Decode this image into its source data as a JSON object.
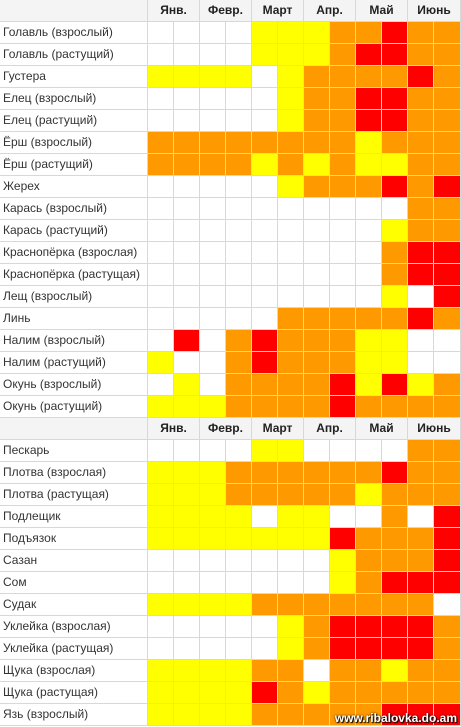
{
  "tables": [
    {
      "header": {
        "months": [
          "Янв.",
          "Февр.",
          "Март",
          "Апр.",
          "Май",
          "Июнь"
        ]
      },
      "rows": [
        {
          "name": "Голавль (взрослый)",
          "cells": [
            "#ffffff",
            "#ffffff",
            "#ffffff",
            "#ffffff",
            "#ffff00",
            "#ffff00",
            "#ffff00",
            "#ff9900",
            "#ff9900",
            "#ff0000",
            "#ff9900",
            "#ff9900"
          ]
        },
        {
          "name": "Голавль (растущий)",
          "cells": [
            "#ffffff",
            "#ffffff",
            "#ffffff",
            "#ffffff",
            "#ffff00",
            "#ffff00",
            "#ffff00",
            "#ff9900",
            "#ff0000",
            "#ff0000",
            "#ff9900",
            "#ff9900"
          ]
        },
        {
          "name": "Густера",
          "cells": [
            "#ffff00",
            "#ffff00",
            "#ffff00",
            "#ffff00",
            "#ffffff",
            "#ffff00",
            "#ff9900",
            "#ff9900",
            "#ff9900",
            "#ff9900",
            "#ff0000",
            "#ff9900"
          ]
        },
        {
          "name": "Елец (взрослый)",
          "cells": [
            "#ffffff",
            "#ffffff",
            "#ffffff",
            "#ffffff",
            "#ffffff",
            "#ffff00",
            "#ff9900",
            "#ff9900",
            "#ff0000",
            "#ff0000",
            "#ff9900",
            "#ff9900"
          ]
        },
        {
          "name": "Елец (растущий)",
          "cells": [
            "#ffffff",
            "#ffffff",
            "#ffffff",
            "#ffffff",
            "#ffffff",
            "#ffff00",
            "#ff9900",
            "#ff9900",
            "#ff0000",
            "#ff0000",
            "#ff9900",
            "#ff9900"
          ]
        },
        {
          "name": "Ёрш (взрослый)",
          "cells": [
            "#ff9900",
            "#ff9900",
            "#ff9900",
            "#ff9900",
            "#ff9900",
            "#ff9900",
            "#ff9900",
            "#ff9900",
            "#ffff00",
            "#ff9900",
            "#ff9900",
            "#ff9900"
          ]
        },
        {
          "name": "Ёрш (растущий)",
          "cells": [
            "#ff9900",
            "#ff9900",
            "#ff9900",
            "#ff9900",
            "#ffff00",
            "#ff9900",
            "#ffff00",
            "#ff9900",
            "#ffff00",
            "#ffff00",
            "#ff9900",
            "#ff9900"
          ]
        },
        {
          "name": "Жерех",
          "cells": [
            "#ffffff",
            "#ffffff",
            "#ffffff",
            "#ffffff",
            "#ffffff",
            "#ffff00",
            "#ff9900",
            "#ff9900",
            "#ff9900",
            "#ff0000",
            "#ff9900",
            "#ff0000"
          ]
        },
        {
          "name": "Карась (взрослый)",
          "cells": [
            "#ffffff",
            "#ffffff",
            "#ffffff",
            "#ffffff",
            "#ffffff",
            "#ffffff",
            "#ffffff",
            "#ffffff",
            "#ffffff",
            "#ffffff",
            "#ff9900",
            "#ff9900"
          ]
        },
        {
          "name": "Карась (растущий)",
          "cells": [
            "#ffffff",
            "#ffffff",
            "#ffffff",
            "#ffffff",
            "#ffffff",
            "#ffffff",
            "#ffffff",
            "#ffffff",
            "#ffffff",
            "#ffff00",
            "#ff9900",
            "#ff9900"
          ]
        },
        {
          "name": "Краснопёрка (взрослая)",
          "cells": [
            "#ffffff",
            "#ffffff",
            "#ffffff",
            "#ffffff",
            "#ffffff",
            "#ffffff",
            "#ffffff",
            "#ffffff",
            "#ffffff",
            "#ff9900",
            "#ff0000",
            "#ff0000"
          ]
        },
        {
          "name": "Краснопёрка (растущая)",
          "cells": [
            "#ffffff",
            "#ffffff",
            "#ffffff",
            "#ffffff",
            "#ffffff",
            "#ffffff",
            "#ffffff",
            "#ffffff",
            "#ffffff",
            "#ff9900",
            "#ff0000",
            "#ff0000"
          ]
        },
        {
          "name": "Лещ (взрослый)",
          "cells": [
            "#ffffff",
            "#ffffff",
            "#ffffff",
            "#ffffff",
            "#ffffff",
            "#ffffff",
            "#ffffff",
            "#ffffff",
            "#ffffff",
            "#ffff00",
            "#ffffff",
            "#ff0000"
          ]
        },
        {
          "name": "Линь",
          "cells": [
            "#ffffff",
            "#ffffff",
            "#ffffff",
            "#ffffff",
            "#ffffff",
            "#ff9900",
            "#ff9900",
            "#ff9900",
            "#ff9900",
            "#ff9900",
            "#ff0000",
            "#ff9900"
          ]
        },
        {
          "name": "Налим (взрослый)",
          "cells": [
            "#ffffff",
            "#ff0000",
            "#ffffff",
            "#ff9900",
            "#ff0000",
            "#ff9900",
            "#ff9900",
            "#ff9900",
            "#ffff00",
            "#ffff00",
            "#ffffff",
            "#ffffff"
          ]
        },
        {
          "name": "Налим (растущий)",
          "cells": [
            "#ffff00",
            "#ffffff",
            "#ffffff",
            "#ff9900",
            "#ff0000",
            "#ff9900",
            "#ff9900",
            "#ff9900",
            "#ffff00",
            "#ffff00",
            "#ffffff",
            "#ffffff"
          ]
        },
        {
          "name": "Окунь (взрослый)",
          "cells": [
            "#ffffff",
            "#ffff00",
            "#ffffff",
            "#ff9900",
            "#ff9900",
            "#ff9900",
            "#ff9900",
            "#ff0000",
            "#ffff00",
            "#ff0000",
            "#ffff00",
            "#ff9900"
          ]
        },
        {
          "name": "Окунь (растущий)",
          "cells": [
            "#ffff00",
            "#ffff00",
            "#ffff00",
            "#ff9900",
            "#ff9900",
            "#ff9900",
            "#ff9900",
            "#ff0000",
            "#ff9900",
            "#ff9900",
            "#ff9900",
            "#ff9900"
          ]
        }
      ]
    },
    {
      "header": {
        "months": [
          "Янв.",
          "Февр.",
          "Март",
          "Апр.",
          "Май",
          "Июнь"
        ]
      },
      "rows": [
        {
          "name": "Пескарь",
          "cells": [
            "#ffffff",
            "#ffffff",
            "#ffffff",
            "#ffffff",
            "#ffff00",
            "#ffff00",
            "#ffffff",
            "#ffffff",
            "#ffffff",
            "#ffffff",
            "#ff9900",
            "#ff9900"
          ]
        },
        {
          "name": "Плотва (взрослая)",
          "cells": [
            "#ffff00",
            "#ffff00",
            "#ffff00",
            "#ff9900",
            "#ff9900",
            "#ff9900",
            "#ff9900",
            "#ff9900",
            "#ff9900",
            "#ff0000",
            "#ff9900",
            "#ff9900"
          ]
        },
        {
          "name": "Плотва (растущая)",
          "cells": [
            "#ffff00",
            "#ffff00",
            "#ffff00",
            "#ff9900",
            "#ff9900",
            "#ff9900",
            "#ff9900",
            "#ff9900",
            "#ffff00",
            "#ff9900",
            "#ff9900",
            "#ff9900"
          ]
        },
        {
          "name": "Подлещик",
          "cells": [
            "#ffff00",
            "#ffff00",
            "#ffff00",
            "#ffff00",
            "#ffffff",
            "#ffff00",
            "#ffff00",
            "#ffffff",
            "#ffffff",
            "#ff9900",
            "#ffffff",
            "#ff0000"
          ]
        },
        {
          "name": "Подъязок",
          "cells": [
            "#ffff00",
            "#ffff00",
            "#ffff00",
            "#ffff00",
            "#ffff00",
            "#ffff00",
            "#ffff00",
            "#ff0000",
            "#ff9900",
            "#ff9900",
            "#ff9900",
            "#ff0000"
          ]
        },
        {
          "name": "Сазан",
          "cells": [
            "#ffffff",
            "#ffffff",
            "#ffffff",
            "#ffffff",
            "#ffffff",
            "#ffffff",
            "#ffffff",
            "#ffff00",
            "#ff9900",
            "#ff9900",
            "#ff9900",
            "#ff0000"
          ]
        },
        {
          "name": "Сом",
          "cells": [
            "#ffffff",
            "#ffffff",
            "#ffffff",
            "#ffffff",
            "#ffffff",
            "#ffffff",
            "#ffffff",
            "#ffff00",
            "#ff9900",
            "#ff0000",
            "#ff0000",
            "#ff0000"
          ]
        },
        {
          "name": "Судак",
          "cells": [
            "#ffff00",
            "#ffff00",
            "#ffff00",
            "#ffff00",
            "#ff9900",
            "#ff9900",
            "#ff9900",
            "#ff9900",
            "#ff9900",
            "#ff9900",
            "#ff9900",
            "#ffffff"
          ]
        },
        {
          "name": "Уклейка (взрослая)",
          "cells": [
            "#ffffff",
            "#ffffff",
            "#ffffff",
            "#ffffff",
            "#ffffff",
            "#ffff00",
            "#ff9900",
            "#ff0000",
            "#ff0000",
            "#ff0000",
            "#ff0000",
            "#ff9900"
          ]
        },
        {
          "name": "Уклейка (растущая)",
          "cells": [
            "#ffffff",
            "#ffffff",
            "#ffffff",
            "#ffffff",
            "#ffffff",
            "#ffff00",
            "#ff9900",
            "#ff0000",
            "#ff0000",
            "#ff0000",
            "#ff0000",
            "#ff9900"
          ]
        },
        {
          "name": "Щука (взрослая)",
          "cells": [
            "#ffff00",
            "#ffff00",
            "#ffff00",
            "#ffff00",
            "#ff9900",
            "#ff9900",
            "#ffffff",
            "#ff9900",
            "#ff9900",
            "#ffff00",
            "#ff9900",
            "#ff9900"
          ]
        },
        {
          "name": "Щука (растущая)",
          "cells": [
            "#ffff00",
            "#ffff00",
            "#ffff00",
            "#ffff00",
            "#ff0000",
            "#ff9900",
            "#ffff00",
            "#ff9900",
            "#ff9900",
            "#ff9900",
            "#ff9900",
            "#ff9900"
          ]
        },
        {
          "name": "Язь (взрослый)",
          "cells": [
            "#ffff00",
            "#ffff00",
            "#ffff00",
            "#ffff00",
            "#ff9900",
            "#ff9900",
            "#ff9900",
            "#ff9900",
            "#ff9900",
            "#ff0000",
            "#ff0000",
            "#ff0000"
          ]
        }
      ]
    }
  ],
  "watermark": "www.ribalovka.do.am"
}
